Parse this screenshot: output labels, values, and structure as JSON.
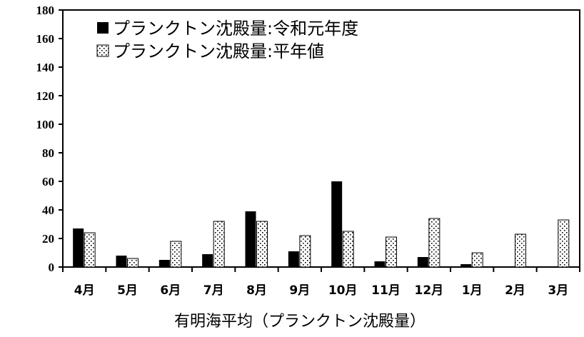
{
  "chart_data": {
    "type": "bar",
    "xlabel": "有明海平均（プランクトン沈殿量）",
    "ylabel": "",
    "ylim": [
      0,
      180
    ],
    "yticks": [
      0,
      20,
      40,
      60,
      80,
      100,
      120,
      140,
      160,
      180
    ],
    "categories": [
      "4月",
      "5月",
      "6月",
      "7月",
      "8月",
      "9月",
      "10月",
      "11月",
      "12月",
      "1月",
      "2月",
      "3月"
    ],
    "series": [
      {
        "name": "プランクトン沈殿量:令和元年度",
        "fill": "solid",
        "color": "#000000",
        "values": [
          27,
          8,
          5,
          9,
          39,
          11,
          60,
          4,
          7,
          2,
          0,
          0
        ]
      },
      {
        "name": "プランクトン沈殿量:平年値",
        "fill": "dotted",
        "color": "#000000",
        "values": [
          24,
          6,
          18,
          32,
          32,
          22,
          25,
          21,
          34,
          10,
          23,
          33
        ]
      }
    ],
    "legend_position": "top-left",
    "grid": false
  }
}
